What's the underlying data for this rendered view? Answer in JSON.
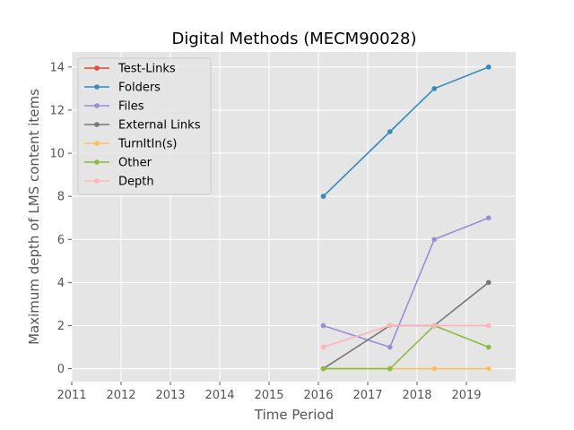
{
  "chart_data": {
    "type": "line",
    "title": "Digital Methods (MECM90028)",
    "xlabel": "Time Period",
    "ylabel": "Maximum depth of LMS content items",
    "xlim": [
      2011,
      2020
    ],
    "ylim": [
      -0.6,
      14.7
    ],
    "x_ticks": [
      "2011",
      "2012",
      "2013",
      "2014",
      "2015",
      "2016",
      "2017",
      "2018",
      "2019"
    ],
    "y_ticks": [
      "0",
      "2",
      "4",
      "6",
      "8",
      "10",
      "12",
      "14"
    ],
    "grid": true,
    "legend_position": "top-left",
    "x": [
      2016.1,
      2017.45,
      2018.35,
      2019.45
    ],
    "series": [
      {
        "name": "Test-Links",
        "color": "#e24a33",
        "values": [
          null,
          null,
          null,
          null
        ]
      },
      {
        "name": "Folders",
        "color": "#348abd",
        "values": [
          8,
          11,
          13,
          14
        ]
      },
      {
        "name": "Files",
        "color": "#988ed5",
        "values": [
          2,
          1,
          6,
          7
        ]
      },
      {
        "name": "External Links",
        "color": "#777777",
        "values": [
          0,
          2,
          2,
          4
        ]
      },
      {
        "name": "TurnItIn(s)",
        "color": "#fbc15e",
        "values": [
          0,
          0,
          0,
          0
        ]
      },
      {
        "name": "Other",
        "color": "#8eba42",
        "values": [
          0,
          0,
          2,
          1
        ]
      },
      {
        "name": "Depth",
        "color": "#ffb5b8",
        "values": [
          1,
          2,
          2,
          2
        ]
      }
    ]
  }
}
